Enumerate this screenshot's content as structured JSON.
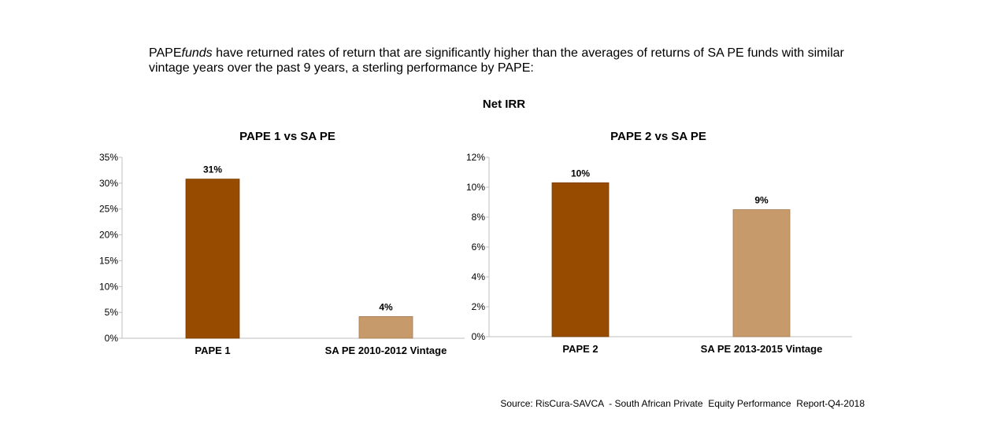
{
  "intro": {
    "prefix": "PAPE",
    "italic_word": "funds",
    "text": " have returned rates of return that are significantly higher than the averages of returns of SA PE funds with similar vintage years over the past 9 years, a sterling performance by PAPE:"
  },
  "header": "Net IRR",
  "colors": {
    "primary_bar": "#964B00",
    "secondary_bar": "#C69A6B",
    "axis": "#bfbfbf"
  },
  "chart_data": [
    {
      "type": "bar",
      "title": "PAPE 1 vs SA PE",
      "categories": [
        "PAPE 1",
        "SA PE 2010-2012 Vintage"
      ],
      "values": [
        30.8,
        4.2
      ],
      "value_labels": [
        "31%",
        "4%"
      ],
      "ylim": [
        0,
        35
      ],
      "yticks": [
        0,
        5,
        10,
        15,
        20,
        25,
        30,
        35
      ],
      "ytick_labels": [
        "0%",
        "5%",
        "10%",
        "15%",
        "20%",
        "25%",
        "30%",
        "35%"
      ],
      "xlabel": "",
      "ylabel": "",
      "grid": false
    },
    {
      "type": "bar",
      "title": "PAPE 2 vs SA PE",
      "categories": [
        "PAPE 2",
        "SA PE 2013-2015 Vintage"
      ],
      "values": [
        10.3,
        8.5
      ],
      "value_labels": [
        "10%",
        "9%"
      ],
      "ylim": [
        0,
        12
      ],
      "yticks": [
        0,
        2,
        4,
        6,
        8,
        10,
        12
      ],
      "ytick_labels": [
        "0%",
        "2%",
        "4%",
        "6%",
        "8%",
        "10%",
        "12%"
      ],
      "xlabel": "",
      "ylabel": "",
      "grid": false
    }
  ],
  "source": "Source: RisCura-SAVCA  - South African Private  Equity Performance  Report-Q4-2018"
}
